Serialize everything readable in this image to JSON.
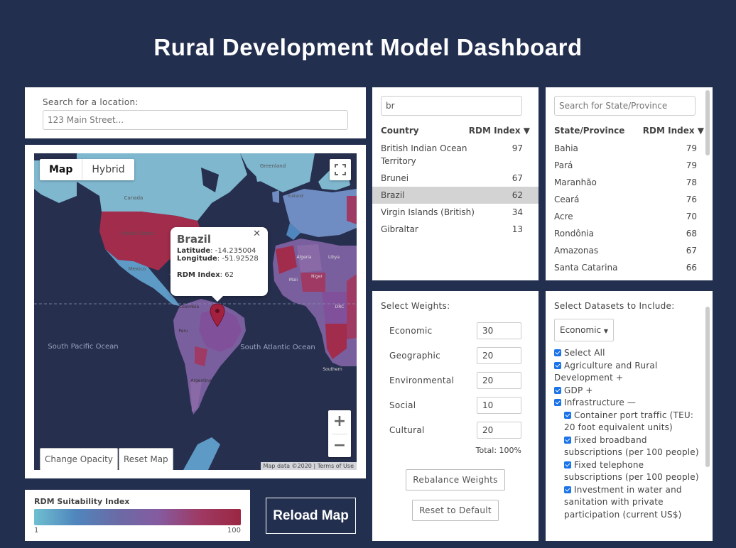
{
  "title": "Rural Development Model Dashboard",
  "search": {
    "label": "Search for a location:",
    "placeholder": "123 Main Street..."
  },
  "map": {
    "type_buttons": [
      "Map",
      "Hybrid"
    ],
    "active_type": "Map",
    "popup": {
      "title": "Brazil",
      "latitude_label": "Latitude",
      "latitude": "-14.235004",
      "longitude_label": "Longitude",
      "longitude": "-51.92528",
      "index_label": "RDM Index",
      "index": "62"
    },
    "buttons": {
      "opacity": "Change Opacity",
      "reset": "Reset Map"
    },
    "attribution": {
      "data": "Map data ©2020",
      "terms": "Terms of Use"
    },
    "labels": [
      "Canada",
      "United States",
      "Mexico",
      "Colombia",
      "Peru",
      "Argentina",
      "Greenland",
      "Iceland",
      "Algeria",
      "Niger",
      "Mali",
      "Libya",
      "DRC",
      "South Pacific Ocean",
      "South Atlantic Ocean",
      "Southern"
    ]
  },
  "legend": {
    "title": "RDM Suitability Index",
    "min": "1",
    "max": "100"
  },
  "reload_label": "Reload Map",
  "countries": {
    "search_value": "br",
    "col_country": "Country",
    "col_index": "RDM Index ▼",
    "rows": [
      {
        "name": "British Indian Ocean Territory",
        "value": "97",
        "selected": false
      },
      {
        "name": "Brunei",
        "value": "67",
        "selected": false
      },
      {
        "name": "Brazil",
        "value": "62",
        "selected": true
      },
      {
        "name": "Virgin Islands (British)",
        "value": "34",
        "selected": false
      },
      {
        "name": "Gibraltar",
        "value": "13",
        "selected": false
      }
    ]
  },
  "states": {
    "placeholder": "Search for State/Province",
    "col_state": "State/Province",
    "col_index": "RDM Index ▼",
    "rows": [
      {
        "name": "Bahia",
        "value": "79"
      },
      {
        "name": "Pará",
        "value": "79"
      },
      {
        "name": "Maranhão",
        "value": "78"
      },
      {
        "name": "Ceará",
        "value": "76"
      },
      {
        "name": "Acre",
        "value": "70"
      },
      {
        "name": "Rondônia",
        "value": "68"
      },
      {
        "name": "Amazonas",
        "value": "67"
      },
      {
        "name": "Santa Catarina",
        "value": "66"
      }
    ]
  },
  "weights": {
    "title": "Select Weights:",
    "items": [
      {
        "label": "Economic",
        "value": "30"
      },
      {
        "label": "Geographic",
        "value": "20"
      },
      {
        "label": "Environmental",
        "value": "20"
      },
      {
        "label": "Social",
        "value": "10"
      },
      {
        "label": "Cultural",
        "value": "20"
      }
    ],
    "total": "Total: 100%",
    "rebalance": "Rebalance Weights",
    "reset": "Reset to Default"
  },
  "datasets": {
    "title": "Select Datasets to Include:",
    "selected_category": "Economic",
    "items": [
      {
        "label": "Select All",
        "sub": false
      },
      {
        "label": "Agriculture and Rural Development +",
        "sub": false
      },
      {
        "label": "GDP +",
        "sub": false
      },
      {
        "label": "Infrastructure —",
        "sub": false
      },
      {
        "label": "Container port traffic (TEU: 20 foot equivalent units)",
        "sub": true
      },
      {
        "label": "Fixed broadband subscriptions (per 100 people)",
        "sub": true
      },
      {
        "label": "Fixed telephone subscriptions (per 100 people)",
        "sub": true
      },
      {
        "label": "Investment in water and sanitation with private participation (current US$)",
        "sub": true
      }
    ]
  },
  "colors": {
    "background": "#232f4f",
    "selected_row": "#d3d3d3",
    "checkbox": "#1a73e8"
  }
}
